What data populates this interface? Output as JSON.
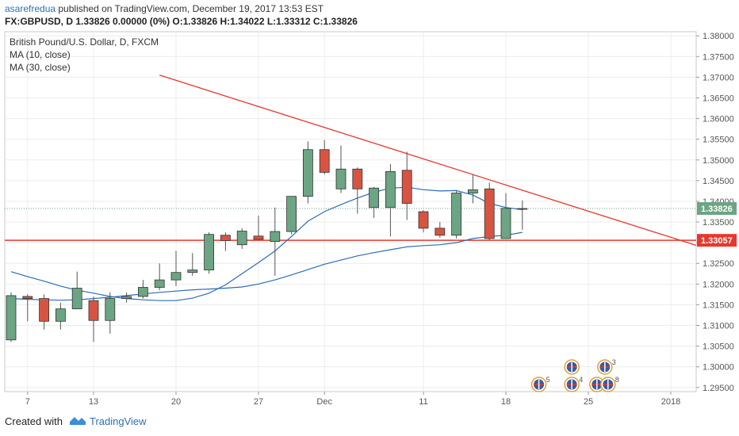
{
  "header": {
    "author": "asarefredua",
    "published_text": " published on TradingView.com, December 19, 2017 13:53 EST",
    "ticker_line": "FX:GBPUSD, D  1.33826 0.00000 (0%) O:1.33826 H:1.34022 L:1.33312 C:1.33826"
  },
  "legend": {
    "title": "British Pound/U.S. Dollar, D, FXCM",
    "ma10": "MA (10, close)",
    "ma30": "MA (30, close)"
  },
  "footer": {
    "created_with": "Created with",
    "brand": "TradingView"
  },
  "colors": {
    "up": "#6ba583",
    "down": "#d75442",
    "trend": "#e8372c",
    "ma": "#2a6db5",
    "last_price_bg": "#6ba583",
    "support_bg": "#e8372c"
  },
  "chart_data": {
    "type": "candlestick",
    "symbol": "FX:GBPUSD",
    "ylim": [
      1.294,
      1.381
    ],
    "y_ticks": [
      "1.38000",
      "1.37500",
      "1.37000",
      "1.36500",
      "1.36000",
      "1.35500",
      "1.35000",
      "1.34500",
      "1.34000",
      "1.33500",
      "1.33000",
      "1.32500",
      "1.32000",
      "1.31500",
      "1.31000",
      "1.30500",
      "1.30000",
      "1.29500"
    ],
    "x_ticks": [
      {
        "label": "7",
        "index": 1
      },
      {
        "label": "13",
        "index": 5
      },
      {
        "label": "20",
        "index": 10
      },
      {
        "label": "27",
        "index": 15
      },
      {
        "label": "Dec",
        "index": 19
      },
      {
        "label": "11",
        "index": 25
      },
      {
        "label": "18",
        "index": 30
      },
      {
        "label": "25",
        "index": 35
      },
      {
        "label": "2018",
        "index": 40
      }
    ],
    "candles": [
      {
        "o": 1.3065,
        "h": 1.318,
        "l": 1.306,
        "c": 1.3172
      },
      {
        "o": 1.317,
        "h": 1.3175,
        "l": 1.311,
        "c": 1.3165
      },
      {
        "o": 1.3165,
        "h": 1.3175,
        "l": 1.309,
        "c": 1.311
      },
      {
        "o": 1.311,
        "h": 1.3155,
        "l": 1.309,
        "c": 1.314
      },
      {
        "o": 1.314,
        "h": 1.323,
        "l": 1.314,
        "c": 1.319
      },
      {
        "o": 1.316,
        "h": 1.317,
        "l": 1.306,
        "c": 1.3112
      },
      {
        "o": 1.3112,
        "h": 1.318,
        "l": 1.308,
        "c": 1.3165
      },
      {
        "o": 1.3165,
        "h": 1.318,
        "l": 1.3155,
        "c": 1.317
      },
      {
        "o": 1.317,
        "h": 1.321,
        "l": 1.3165,
        "c": 1.3192
      },
      {
        "o": 1.3192,
        "h": 1.325,
        "l": 1.3185,
        "c": 1.321
      },
      {
        "o": 1.321,
        "h": 1.328,
        "l": 1.3195,
        "c": 1.3228
      },
      {
        "o": 1.3228,
        "h": 1.3275,
        "l": 1.322,
        "c": 1.3234
      },
      {
        "o": 1.3234,
        "h": 1.3325,
        "l": 1.3225,
        "c": 1.332
      },
      {
        "o": 1.3318,
        "h": 1.3325,
        "l": 1.328,
        "c": 1.3305
      },
      {
        "o": 1.3295,
        "h": 1.3335,
        "l": 1.3285,
        "c": 1.3328
      },
      {
        "o": 1.3316,
        "h": 1.3365,
        "l": 1.331,
        "c": 1.3308
      },
      {
        "o": 1.3303,
        "h": 1.3385,
        "l": 1.322,
        "c": 1.3327
      },
      {
        "o": 1.3327,
        "h": 1.341,
        "l": 1.332,
        "c": 1.3412
      },
      {
        "o": 1.3412,
        "h": 1.3545,
        "l": 1.3395,
        "c": 1.3525
      },
      {
        "o": 1.3525,
        "h": 1.3548,
        "l": 1.3465,
        "c": 1.347
      },
      {
        "o": 1.343,
        "h": 1.3535,
        "l": 1.342,
        "c": 1.3478
      },
      {
        "o": 1.3478,
        "h": 1.3482,
        "l": 1.337,
        "c": 1.343
      },
      {
        "o": 1.3385,
        "h": 1.3435,
        "l": 1.336,
        "c": 1.3432
      },
      {
        "o": 1.3385,
        "h": 1.349,
        "l": 1.3315,
        "c": 1.3472
      },
      {
        "o": 1.3475,
        "h": 1.352,
        "l": 1.3355,
        "c": 1.3395
      },
      {
        "o": 1.3375,
        "h": 1.3378,
        "l": 1.3325,
        "c": 1.3335
      },
      {
        "o": 1.3335,
        "h": 1.335,
        "l": 1.3312,
        "c": 1.3318
      },
      {
        "o": 1.3318,
        "h": 1.3425,
        "l": 1.331,
        "c": 1.342
      },
      {
        "o": 1.342,
        "h": 1.3465,
        "l": 1.3395,
        "c": 1.3428
      },
      {
        "o": 1.343,
        "h": 1.3445,
        "l": 1.3305,
        "c": 1.331
      },
      {
        "o": 1.331,
        "h": 1.342,
        "l": 1.3312,
        "c": 1.3383
      },
      {
        "o": 1.33826,
        "h": 1.34022,
        "l": 1.33312,
        "c": 1.33826
      }
    ],
    "ma10": [
      1.323,
      1.3218,
      1.3207,
      1.3195,
      1.3185,
      1.3178,
      1.317,
      1.3165,
      1.3162,
      1.316,
      1.316,
      1.3166,
      1.3178,
      1.3198,
      1.3225,
      1.3252,
      1.328,
      1.3315,
      1.3352,
      1.3375,
      1.3392,
      1.3408,
      1.3422,
      1.3432,
      1.3434,
      1.3428,
      1.3425,
      1.3426,
      1.3415,
      1.3395,
      1.3385,
      1.338
    ],
    "ma30": [
      1.3165,
      1.3163,
      1.3162,
      1.3161,
      1.3162,
      1.3165,
      1.3168,
      1.3172,
      1.3176,
      1.318,
      1.3183,
      1.3186,
      1.3188,
      1.319,
      1.3193,
      1.32,
      1.321,
      1.3222,
      1.3235,
      1.3248,
      1.3258,
      1.3268,
      1.3276,
      1.3283,
      1.329,
      1.3293,
      1.3295,
      1.33,
      1.331,
      1.3315,
      1.3318,
      1.3325
    ],
    "trendline": {
      "from": {
        "index": 9,
        "price": 1.3705
      },
      "to": {
        "index": 43,
        "price": 1.3275
      }
    },
    "support_price": 1.33057,
    "support_label": "1.33057",
    "last_price": 1.33826,
    "last_price_label": "1.33826",
    "flags": [
      {
        "index": 34,
        "offset": 0,
        "label": "",
        "lane": "top"
      },
      {
        "index": 36,
        "offset": 0,
        "label": "3",
        "lane": "top"
      },
      {
        "index": 32,
        "offset": 0,
        "label": "5",
        "lane": "bottom"
      },
      {
        "index": 34,
        "offset": 0,
        "label": "4",
        "lane": "bottom"
      },
      {
        "index": 36,
        "offset": -10,
        "label": "8",
        "lane": "bottom"
      },
      {
        "index": 36,
        "offset": 4,
        "label": "8",
        "lane": "bottom"
      }
    ]
  }
}
